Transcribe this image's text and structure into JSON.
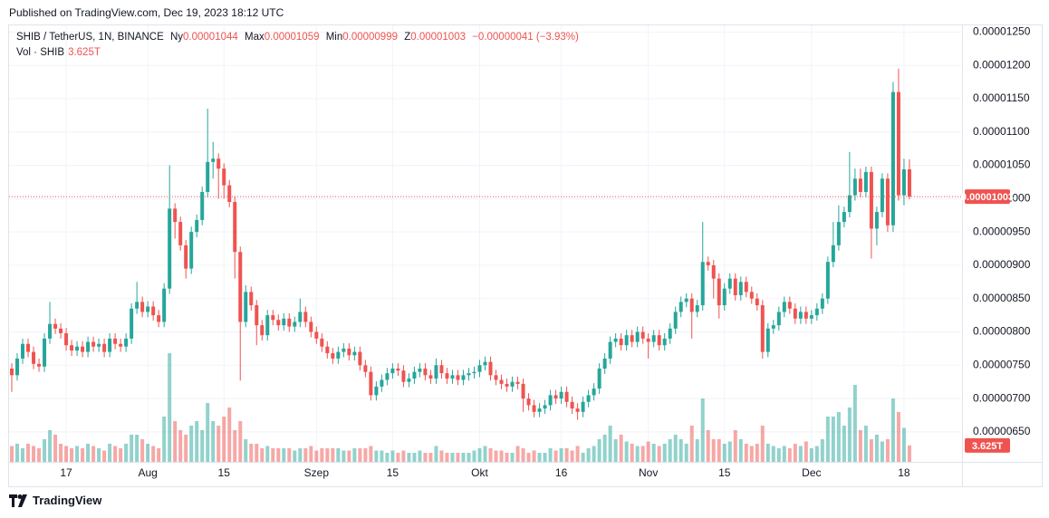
{
  "header": {
    "published": "Published on TradingView.com, Dec 19, 2023 18:12 UTC",
    "symbol": "SHIB / TetherUS, 1N, BINANCE",
    "open_label": "Ny",
    "open_value": "0.00001044",
    "high_label": "Max",
    "high_value": "0.00001059",
    "low_label": "Min",
    "low_value": "0.00000999",
    "close_label": "Z",
    "close_value": "0.00001003",
    "change": "−0.00000041 (−3.93%)",
    "vol_label": "Vol · SHIB",
    "vol_value": "3.625T"
  },
  "footer": {
    "brand": "TradingView"
  },
  "chart_data": {
    "type": "candlestick",
    "up_color": "#26a69a",
    "down_color": "#ef5350",
    "grid": true,
    "xlim": [
      -0.5,
      174.5
    ],
    "xticks": [
      {
        "value": 10,
        "label": "17"
      },
      {
        "value": 25,
        "label": "Aug"
      },
      {
        "value": 39,
        "label": "15"
      },
      {
        "value": 56,
        "label": "Szep"
      },
      {
        "value": 70,
        "label": "15"
      },
      {
        "value": 86,
        "label": "Okt"
      },
      {
        "value": 101,
        "label": "16"
      },
      {
        "value": 117,
        "label": "Nov"
      },
      {
        "value": 131,
        "label": "15"
      },
      {
        "value": 147,
        "label": "Dec"
      },
      {
        "value": 164,
        "label": "18"
      }
    ],
    "ylim": [
      6.05e-06,
      1.26e-05
    ],
    "yticks": [
      {
        "value": 6.5e-06,
        "label": "0.00000650"
      },
      {
        "value": 7e-06,
        "label": "0.00000700"
      },
      {
        "value": 7.5e-06,
        "label": "0.00000750"
      },
      {
        "value": 8e-06,
        "label": "0.00000800"
      },
      {
        "value": 8.5e-06,
        "label": "0.00000850"
      },
      {
        "value": 9e-06,
        "label": "0.00000900"
      },
      {
        "value": 9.5e-06,
        "label": "0.00000950"
      },
      {
        "value": 1e-05,
        "label": "0.00001000"
      },
      {
        "value": 1.05e-05,
        "label": "0.00001050"
      },
      {
        "value": 1.1e-05,
        "label": "0.00001100"
      },
      {
        "value": 1.15e-05,
        "label": "0.00001150"
      },
      {
        "value": 1.2e-05,
        "label": "0.00001200"
      },
      {
        "value": 1.25e-05,
        "label": "0.00001250"
      }
    ],
    "last_price_label": "0.00001003",
    "last_volume_label": "3.625T",
    "open": [
      7.45e-06,
      7.35e-06,
      7.6e-06,
      7.82e-06,
      7.7e-06,
      7.52e-06,
      7.48e-06,
      7.9e-06,
      8.12e-06,
      8.05e-06,
      7.98e-06,
      7.8e-06,
      7.72e-06,
      7.78e-06,
      7.7e-06,
      7.85e-06,
      7.78e-06,
      7.82e-06,
      7.7e-06,
      7.9e-06,
      7.82e-06,
      7.78e-06,
      7.9e-06,
      8.35e-06,
      8.45e-06,
      8.3e-06,
      8.38e-06,
      8.25e-06,
      8.15e-06,
      8.65e-06,
      9.85e-06,
      9.65e-06,
      9.3e-06,
      8.95e-06,
      9.5e-06,
      9.68e-06,
      1.01e-05,
      1.055e-05,
      1.06e-05,
      1.045e-05,
      1.02e-05,
      9.95e-06,
      9.2e-06,
      8.15e-06,
      8.6e-06,
      8.4e-06,
      8.1e-06,
      7.95e-06,
      8.25e-06,
      8.18e-06,
      8.1e-06,
      8.2e-06,
      8.08e-06,
      8.15e-06,
      8.3e-06,
      8.15e-06,
      8e-06,
      7.9e-06,
      7.78e-06,
      7.68e-06,
      7.6e-06,
      7.7e-06,
      7.75e-06,
      7.65e-06,
      7.7e-06,
      7.5e-06,
      7.4e-06,
      7.05e-06,
      7.18e-06,
      7.28e-06,
      7.38e-06,
      7.45e-06,
      7.42e-06,
      7.25e-06,
      7.3e-06,
      7.4e-06,
      7.45e-06,
      7.35e-06,
      7.3e-06,
      7.5e-06,
      7.38e-06,
      7.3e-06,
      7.35e-06,
      7.28e-06,
      7.35e-06,
      7.38e-06,
      7.4e-06,
      7.5e-06,
      7.55e-06,
      7.35e-06,
      7.28e-06,
      7.22e-06,
      7.18e-06,
      7.25e-06,
      7.22e-06,
      7e-06,
      6.9e-06,
      6.8e-06,
      6.85e-06,
      6.9e-06,
      7.05e-06,
      7e-06,
      7.1e-06,
      6.95e-06,
      6.85e-06,
      6.8e-06,
      6.95e-06,
      7.05e-06,
      7.15e-06,
      7.45e-06,
      7.6e-06,
      7.85e-06,
      7.9e-06,
      7.8e-06,
      7.95e-06,
      7.85e-06,
      8e-06,
      7.9e-06,
      7.85e-06,
      7.95e-06,
      7.8e-06,
      7.9e-06,
      8.05e-06,
      8.3e-06,
      8.45e-06,
      8.5e-06,
      8.3e-06,
      8.4e-06,
      9.05e-06,
      9e-06,
      8.8e-06,
      8.4e-06,
      8.65e-06,
      8.8e-06,
      8.55e-06,
      8.75e-06,
      8.6e-06,
      8.5e-06,
      8.4e-06,
      7.7e-06,
      8.05e-06,
      8.1e-06,
      8.3e-06,
      8.45e-06,
      8.35e-06,
      8.2e-06,
      8.3e-06,
      8.2e-06,
      8.25e-06,
      8.35e-06,
      8.5e-06,
      9.05e-06,
      9.3e-06,
      9.65e-06,
      9.8e-06,
      1.005e-05,
      1.03e-05,
      1.01e-05,
      1.04e-05,
      9.55e-06,
      9.8e-06,
      1.03e-05,
      9.6e-06,
      1.16e-05,
      1.005e-05,
      1.044e-05
    ],
    "high": [
      7.53e-06,
      7.68e-06,
      7.9e-06,
      7.9e-06,
      7.78e-06,
      7.6e-06,
      7.98e-06,
      8.45e-06,
      8.2e-06,
      8.13e-06,
      8.06e-06,
      7.88e-06,
      7.86e-06,
      7.86e-06,
      7.93e-06,
      7.93e-06,
      7.9e-06,
      7.9e-06,
      7.98e-06,
      7.98e-06,
      7.9e-06,
      7.98e-06,
      8.43e-06,
      8.75e-06,
      8.53e-06,
      8.46e-06,
      8.46e-06,
      8.33e-06,
      8.73e-06,
      1.05e-05,
      9.93e-06,
      9.73e-06,
      9.38e-06,
      9.58e-06,
      9.76e-06,
      1.018e-05,
      1.135e-05,
      1.085e-05,
      1.068e-05,
      1.053e-05,
      1.028e-05,
      1.003e-05,
      9.28e-06,
      8.7e-06,
      8.68e-06,
      8.48e-06,
      8.18e-06,
      8.33e-06,
      8.33e-06,
      8.26e-06,
      8.28e-06,
      8.28e-06,
      8.23e-06,
      8.5e-06,
      8.38e-06,
      8.23e-06,
      8.08e-06,
      7.98e-06,
      7.86e-06,
      7.76e-06,
      7.78e-06,
      7.83e-06,
      7.83e-06,
      7.78e-06,
      7.78e-06,
      7.58e-06,
      7.48e-06,
      7.26e-06,
      7.36e-06,
      7.46e-06,
      7.53e-06,
      7.53e-06,
      7.5e-06,
      7.38e-06,
      7.48e-06,
      7.53e-06,
      7.53e-06,
      7.43e-06,
      7.6e-06,
      7.58e-06,
      7.46e-06,
      7.43e-06,
      7.43e-06,
      7.43e-06,
      7.46e-06,
      7.48e-06,
      7.58e-06,
      7.63e-06,
      7.63e-06,
      7.43e-06,
      7.36e-06,
      7.3e-06,
      7.33e-06,
      7.33e-06,
      7.3e-06,
      7.08e-06,
      6.98e-06,
      6.93e-06,
      6.98e-06,
      7.13e-06,
      7.13e-06,
      7.18e-06,
      7.18e-06,
      7.03e-06,
      6.93e-06,
      7.03e-06,
      7.13e-06,
      7.23e-06,
      7.53e-06,
      7.68e-06,
      7.93e-06,
      7.98e-06,
      7.98e-06,
      8.03e-06,
      8.03e-06,
      8.08e-06,
      8.08e-06,
      7.98e-06,
      8.03e-06,
      8.03e-06,
      7.98e-06,
      8.13e-06,
      8.38e-06,
      8.53e-06,
      8.58e-06,
      8.58e-06,
      8.48e-06,
      9.65e-06,
      9.13e-06,
      9.08e-06,
      8.88e-06,
      8.73e-06,
      8.88e-06,
      8.88e-06,
      8.83e-06,
      8.83e-06,
      8.68e-06,
      8.58e-06,
      8.48e-06,
      8.13e-06,
      8.18e-06,
      8.38e-06,
      8.53e-06,
      8.53e-06,
      8.43e-06,
      8.38e-06,
      8.38e-06,
      8.33e-06,
      8.43e-06,
      8.58e-06,
      9.13e-06,
      9.65e-06,
      9.9e-06,
      9.88e-06,
      1.07e-05,
      1.045e-05,
      1.045e-05,
      1.048e-05,
      1.048e-05,
      9.88e-06,
      1.038e-05,
      1.038e-05,
      1.175e-05,
      1.195e-05,
      1.06e-05,
      1.059e-05
    ],
    "low": [
      7.1e-06,
      7.27e-06,
      7.52e-06,
      7.62e-06,
      7.44e-06,
      7.4e-06,
      7.4e-06,
      7.82e-06,
      7.97e-06,
      7.9e-06,
      7.72e-06,
      7.64e-06,
      7.64e-06,
      7.62e-06,
      7.62e-06,
      7.7e-06,
      7.7e-06,
      7.62e-06,
      7.62e-06,
      7.74e-06,
      7.7e-06,
      7.7e-06,
      7.82e-06,
      8.27e-06,
      8.22e-06,
      8.22e-06,
      8.17e-06,
      8.07e-06,
      8.07e-06,
      8.57e-06,
      9.4e-06,
      9.22e-06,
      8.8e-06,
      8.87e-06,
      9.42e-06,
      9.6e-06,
      1.002e-05,
      1.03e-05,
      1e-05,
      1e-05,
      9.87e-06,
      8.8e-06,
      7.27e-06,
      8.07e-06,
      8.32e-06,
      7.8e-06,
      7.87e-06,
      7.87e-06,
      8.1e-06,
      8.02e-06,
      8.02e-06,
      8e-06,
      8e-06,
      8.07e-06,
      8.07e-06,
      7.92e-06,
      7.82e-06,
      7.7e-06,
      7.6e-06,
      7.52e-06,
      7.52e-06,
      7.62e-06,
      7.57e-06,
      7.57e-06,
      7.42e-06,
      7.32e-06,
      6.97e-06,
      6.97e-06,
      7.1e-06,
      7.2e-06,
      7.3e-06,
      7.34e-06,
      7.17e-06,
      7.17e-06,
      7.22e-06,
      7.32e-06,
      7.27e-06,
      7.22e-06,
      7.22e-06,
      7.3e-06,
      7.22e-06,
      7.22e-06,
      7.2e-06,
      7.2e-06,
      7.27e-06,
      7.3e-06,
      7.32e-06,
      7.42e-06,
      7.27e-06,
      7.2e-06,
      7.14e-06,
      7.1e-06,
      7.1e-06,
      7.14e-06,
      6.8e-06,
      6.82e-06,
      6.72e-06,
      6.72e-06,
      6.77e-06,
      6.82e-06,
      6.92e-06,
      6.92e-06,
      6.87e-06,
      6.77e-06,
      6.68e-06,
      6.72e-06,
      6.87e-06,
      6.97e-06,
      7.07e-06,
      7.37e-06,
      7.52e-06,
      7.77e-06,
      7.72e-06,
      7.72e-06,
      7.77e-06,
      7.77e-06,
      7.82e-06,
      7.6e-06,
      7.77e-06,
      7.72e-06,
      7.72e-06,
      7.82e-06,
      7.97e-06,
      8.22e-06,
      8.37e-06,
      7.9e-06,
      8.22e-06,
      8.32e-06,
      8.92e-06,
      8.5e-06,
      8.2e-06,
      8.32e-06,
      8.57e-06,
      8.47e-06,
      8.47e-06,
      8.52e-06,
      8.42e-06,
      8.32e-06,
      7.6e-06,
      7.62e-06,
      7.97e-06,
      8.02e-06,
      8.22e-06,
      8.27e-06,
      8.12e-06,
      8.12e-06,
      8.12e-06,
      8.12e-06,
      8.17e-06,
      8.27e-06,
      8.42e-06,
      8.97e-06,
      9.22e-06,
      9.57e-06,
      9.72e-06,
      9.97e-06,
      1.002e-05,
      1.002e-05,
      9.1e-06,
      9.3e-06,
      9.72e-06,
      9.5e-06,
      9.5e-06,
      9.97e-06,
      9.9e-06,
      9.99e-06
    ],
    "close": [
      7.35e-06,
      7.6e-06,
      7.82e-06,
      7.7e-06,
      7.52e-06,
      7.48e-06,
      7.9e-06,
      8.12e-06,
      8.05e-06,
      7.98e-06,
      7.8e-06,
      7.72e-06,
      7.78e-06,
      7.7e-06,
      7.85e-06,
      7.78e-06,
      7.82e-06,
      7.7e-06,
      7.9e-06,
      7.82e-06,
      7.78e-06,
      7.9e-06,
      8.35e-06,
      8.45e-06,
      8.3e-06,
      8.38e-06,
      8.25e-06,
      8.15e-06,
      8.65e-06,
      9.85e-06,
      9.65e-06,
      9.3e-06,
      8.95e-06,
      9.5e-06,
      9.68e-06,
      1.01e-05,
      1.055e-05,
      1.06e-05,
      1.045e-05,
      1.02e-05,
      9.95e-06,
      9.2e-06,
      8.15e-06,
      8.6e-06,
      8.4e-06,
      8.1e-06,
      7.95e-06,
      8.25e-06,
      8.18e-06,
      8.1e-06,
      8.2e-06,
      8.08e-06,
      8.15e-06,
      8.3e-06,
      8.15e-06,
      8e-06,
      7.9e-06,
      7.78e-06,
      7.68e-06,
      7.6e-06,
      7.7e-06,
      7.75e-06,
      7.65e-06,
      7.7e-06,
      7.5e-06,
      7.4e-06,
      7.05e-06,
      7.18e-06,
      7.28e-06,
      7.38e-06,
      7.45e-06,
      7.42e-06,
      7.25e-06,
      7.3e-06,
      7.4e-06,
      7.45e-06,
      7.35e-06,
      7.3e-06,
      7.5e-06,
      7.38e-06,
      7.3e-06,
      7.35e-06,
      7.28e-06,
      7.35e-06,
      7.38e-06,
      7.4e-06,
      7.5e-06,
      7.55e-06,
      7.35e-06,
      7.28e-06,
      7.22e-06,
      7.18e-06,
      7.25e-06,
      7.22e-06,
      7e-06,
      6.9e-06,
      6.8e-06,
      6.85e-06,
      6.9e-06,
      7.05e-06,
      7e-06,
      7.1e-06,
      6.95e-06,
      6.85e-06,
      6.8e-06,
      6.95e-06,
      7.05e-06,
      7.15e-06,
      7.45e-06,
      7.6e-06,
      7.85e-06,
      7.9e-06,
      7.8e-06,
      7.95e-06,
      7.85e-06,
      8e-06,
      7.9e-06,
      7.85e-06,
      7.95e-06,
      7.8e-06,
      7.9e-06,
      8.05e-06,
      8.3e-06,
      8.45e-06,
      8.5e-06,
      8.3e-06,
      8.4e-06,
      9.05e-06,
      9e-06,
      8.8e-06,
      8.4e-06,
      8.65e-06,
      8.8e-06,
      8.55e-06,
      8.75e-06,
      8.6e-06,
      8.5e-06,
      8.4e-06,
      7.7e-06,
      8.05e-06,
      8.1e-06,
      8.3e-06,
      8.45e-06,
      8.35e-06,
      8.2e-06,
      8.3e-06,
      8.2e-06,
      8.25e-06,
      8.35e-06,
      8.5e-06,
      9.05e-06,
      9.3e-06,
      9.65e-06,
      9.8e-06,
      1.005e-05,
      1.03e-05,
      1.01e-05,
      1.04e-05,
      9.55e-06,
      9.8e-06,
      1.03e-05,
      9.6e-06,
      1.16e-05,
      1.005e-05,
      1.044e-05,
      1.003e-05
    ],
    "volume": [
      3.5,
      4,
      3,
      4,
      3.5,
      3,
      5,
      7,
      6,
      4,
      3.5,
      3,
      3.5,
      3,
      4,
      3.5,
      3,
      2.5,
      4,
      3.5,
      3,
      4,
      6,
      6,
      5,
      4,
      3.5,
      3,
      10,
      24,
      9,
      7,
      6,
      8,
      9,
      7,
      13,
      9,
      8,
      10,
      12,
      7,
      9,
      5,
      4,
      4,
      3,
      3.5,
      3,
      3,
      3,
      3,
      2.5,
      3,
      3,
      3.5,
      2.5,
      3,
      3,
      3,
      3,
      2.5,
      2.5,
      3,
      3,
      3,
      3.5,
      2.5,
      2.5,
      2,
      2.5,
      2,
      2.5,
      2,
      2,
      2.5,
      2,
      2,
      3.5,
      2.5,
      2,
      2,
      2,
      2,
      2,
      2.5,
      3,
      3.5,
      3,
      2.5,
      2.5,
      2,
      2,
      3.5,
      3,
      2,
      2.5,
      2,
      2,
      3,
      2.5,
      3,
      3,
      2.5,
      3.5,
      2,
      3,
      3.5,
      5,
      6,
      8,
      5,
      6,
      4.5,
      4,
      3.5,
      3.5,
      4.5,
      4,
      3.5,
      4,
      5,
      6,
      5,
      4,
      8,
      5,
      14,
      7,
      5,
      5,
      4,
      4.5,
      7,
      5,
      4,
      3.5,
      4,
      8,
      4,
      3.5,
      3,
      3.5,
      3,
      4,
      3.5,
      4.5,
      3,
      3.5,
      5,
      10,
      10,
      11,
      8,
      12,
      17,
      7,
      8,
      5,
      6,
      4.5,
      5,
      14,
      11,
      7.5,
      3.625
    ]
  }
}
